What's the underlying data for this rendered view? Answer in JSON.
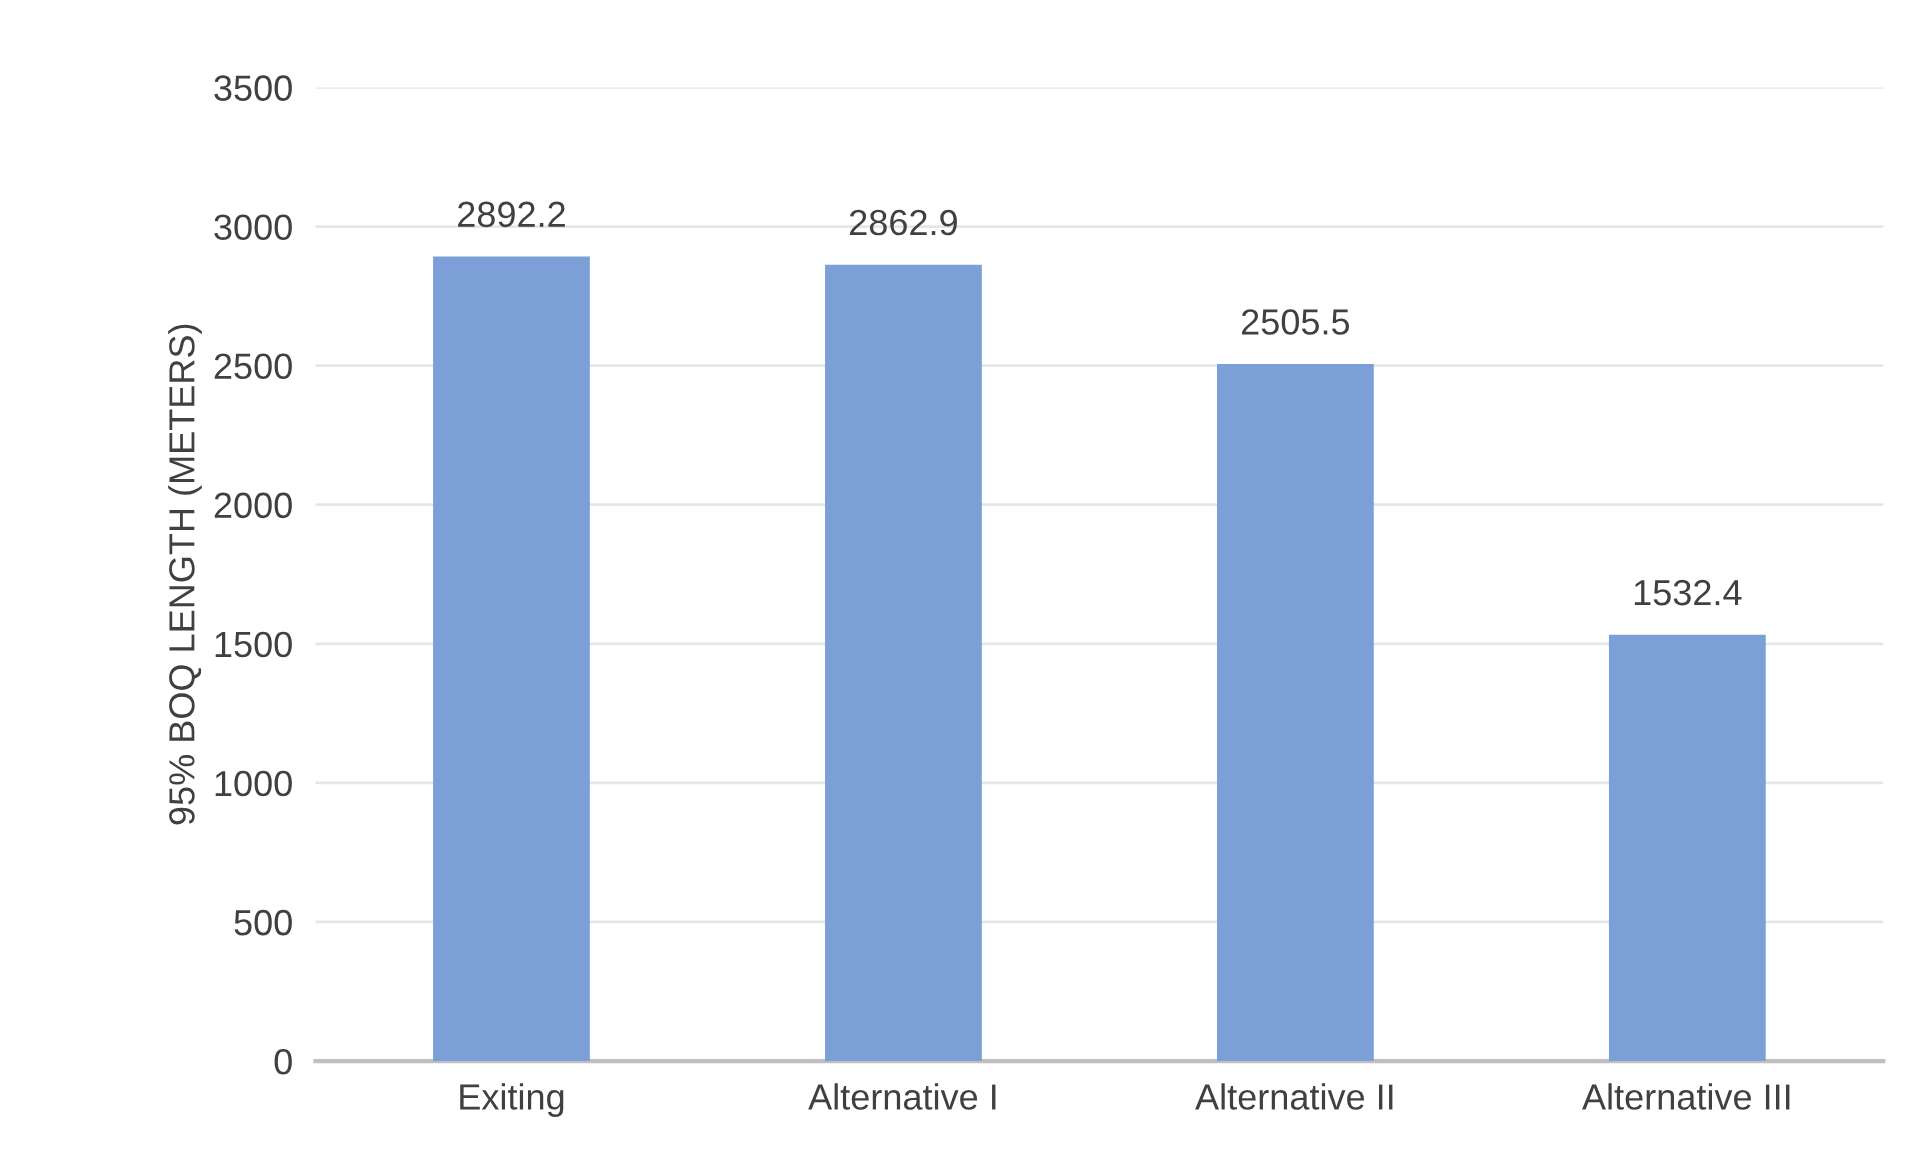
{
  "chart_data": {
    "type": "bar",
    "ylabel": "95% BOQ LENGTH (METERS)",
    "categories": [
      "Exiting",
      "Alternative I",
      "Alternative II",
      "Alternative III"
    ],
    "values": [
      2892.2,
      2862.9,
      2505.5,
      1532.4
    ],
    "color": "#7b9fd6",
    "ylim": [
      0,
      3500
    ],
    "yticks": [
      0,
      500,
      1000,
      1500,
      2000,
      2500,
      3000,
      3500
    ],
    "grid": "y",
    "data_labels": true,
    "legend": false
  }
}
